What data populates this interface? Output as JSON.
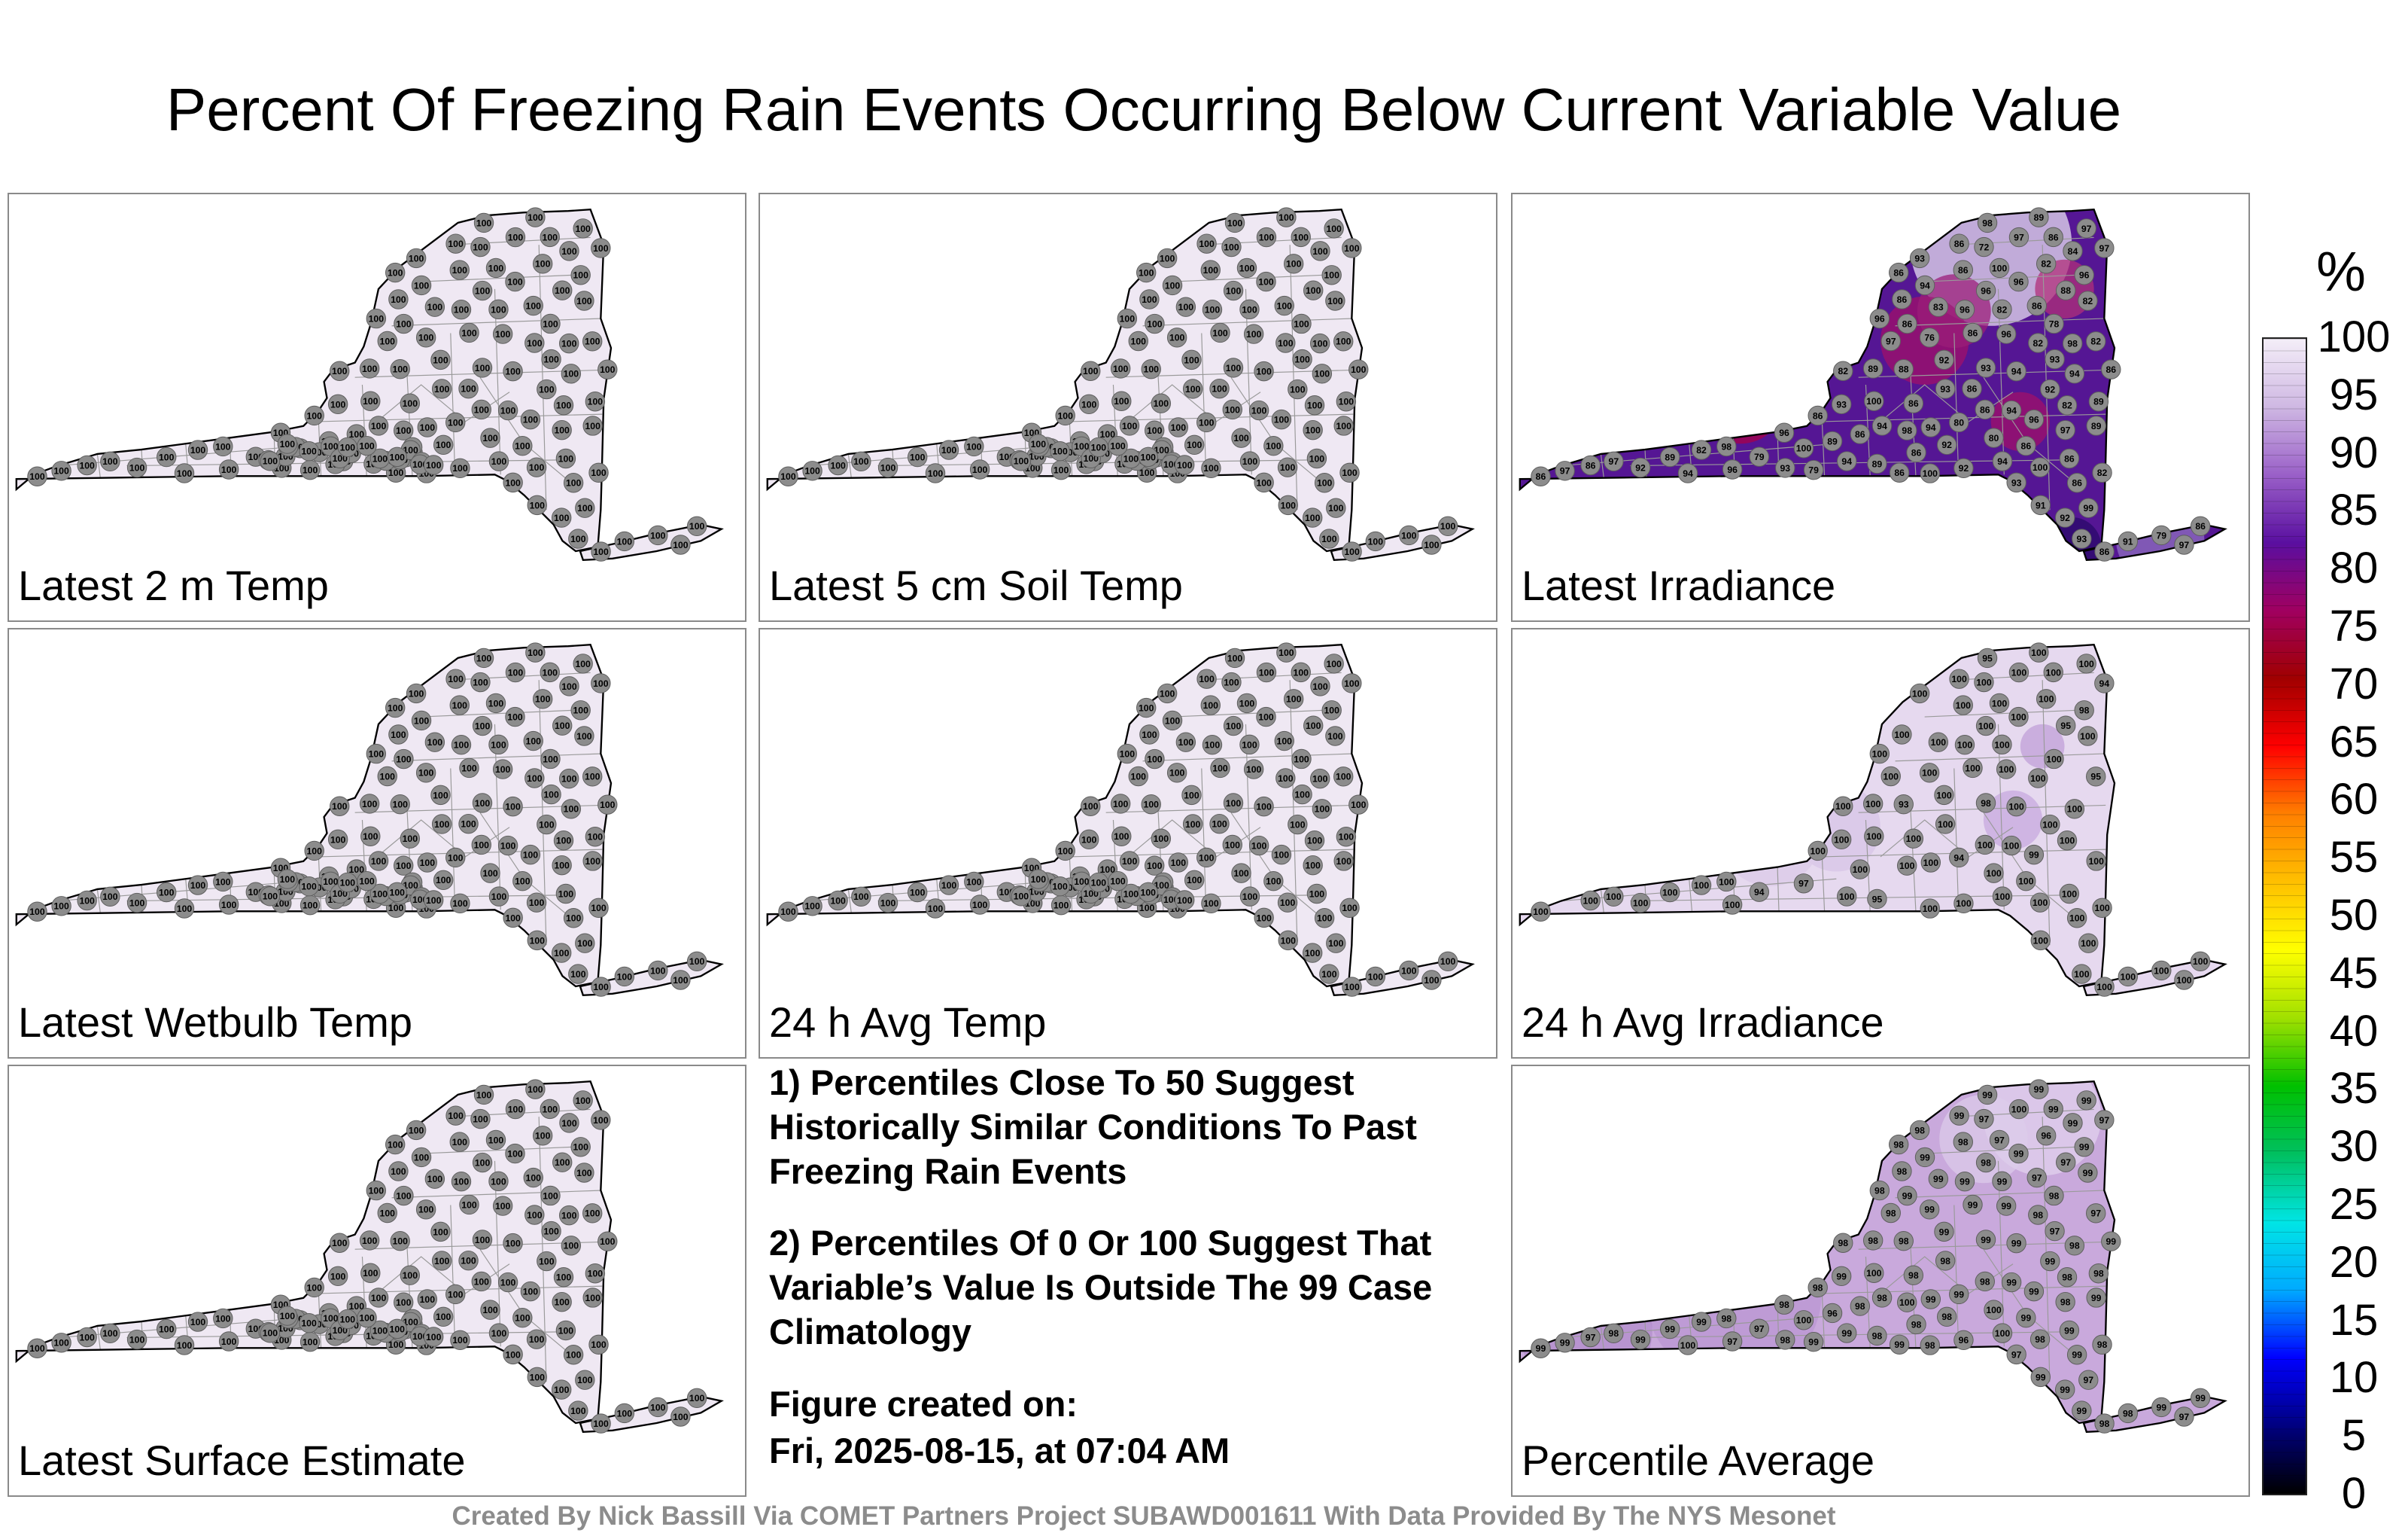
{
  "title": "Percent Of Freezing Rain Events Occurring Below Current Variable Value",
  "panels": [
    {
      "label": "Latest 2 m Temp",
      "values": [
        100,
        100,
        100,
        100,
        100,
        100,
        100,
        100,
        100,
        100,
        100,
        100,
        100,
        100,
        100,
        100,
        100,
        100,
        100,
        100,
        100,
        100,
        100,
        100,
        100,
        100,
        100,
        100,
        100,
        100,
        100,
        100,
        100,
        100,
        100,
        100,
        100,
        100,
        100,
        100,
        100,
        100,
        100,
        100,
        100,
        100,
        100,
        100,
        100,
        100,
        100,
        100,
        100,
        100,
        100,
        100,
        100,
        100,
        100,
        100,
        100,
        100,
        100,
        100,
        100,
        100,
        100,
        100,
        100,
        100,
        100,
        100,
        100,
        100,
        100,
        100,
        100,
        100,
        100,
        100,
        100,
        100,
        100,
        100,
        100,
        100,
        100,
        100,
        100,
        100,
        100,
        100,
        100,
        100,
        100,
        100,
        100,
        100,
        100,
        100,
        100,
        100,
        100,
        100,
        100,
        100,
        100,
        100,
        100,
        100,
        100,
        100,
        100,
        100,
        100,
        100,
        100,
        100,
        100,
        100,
        100,
        100,
        100,
        100,
        100,
        100,
        100
      ]
    },
    {
      "label": "Latest 5 cm Soil Temp",
      "values": [
        100,
        100,
        100,
        100,
        100,
        100,
        100,
        100,
        100,
        100,
        100,
        100,
        100,
        100,
        100,
        100,
        100,
        100,
        100,
        100,
        100,
        100,
        100,
        100,
        100,
        100,
        100,
        100,
        100,
        100,
        100,
        100,
        100,
        100,
        100,
        100,
        100,
        100,
        100,
        100,
        100,
        100,
        100,
        100,
        100,
        100,
        100,
        100,
        100,
        100,
        100,
        100,
        100,
        100,
        100,
        100,
        100,
        100,
        100,
        100,
        100,
        100,
        100,
        100,
        100,
        100,
        100,
        100,
        100,
        100,
        100,
        100,
        100,
        100,
        100,
        100,
        100,
        100,
        100,
        100,
        100,
        100,
        100,
        100,
        100,
        100,
        100,
        100,
        100,
        100,
        100,
        100,
        100,
        100,
        100,
        100,
        100,
        100,
        100,
        100,
        100,
        100,
        100,
        100,
        100,
        100,
        100,
        100,
        100,
        100,
        100,
        100,
        100,
        100,
        100,
        100,
        100,
        100,
        100,
        100,
        100,
        100,
        100,
        100,
        100,
        100,
        100
      ]
    },
    {
      "label": "Latest Irradiance",
      "values": [
        98,
        100,
        94,
        100,
        80,
        86,
        94,
        79,
        100,
        82,
        96,
        96,
        86,
        82,
        97,
        80,
        82,
        86,
        86,
        98,
        96,
        93,
        82,
        76,
        88,
        94,
        100,
        86,
        89,
        91,
        93,
        94,
        97,
        99,
        98,
        86,
        89,
        89,
        82,
        94,
        92,
        96,
        97,
        96,
        93,
        97,
        100,
        72,
        88,
        89,
        92,
        93,
        94,
        86,
        96,
        96,
        97,
        86,
        97,
        78,
        86,
        86,
        82,
        86,
        83,
        89,
        86,
        82,
        93,
        86,
        82,
        92,
        91,
        96,
        86,
        82,
        92,
        79,
        86,
        86,
        89,
        86,
        86,
        92,
        86,
        93,
        86,
        84,
        97,
        93,
        79,
        96,
        92,
        97,
        94,
        86,
        93,
        94,
        89,
        94,
        86,
        98,
        86
      ]
    },
    {
      "label": "Latest Wetbulb Temp",
      "values": [
        100,
        100,
        100,
        100,
        100,
        100,
        100,
        100,
        100,
        100,
        100,
        100,
        100,
        100,
        100,
        100,
        100,
        100,
        100,
        100,
        100,
        100,
        100,
        100,
        100,
        100,
        100,
        100,
        100,
        100,
        100,
        100,
        100,
        100,
        100,
        100,
        100,
        100,
        100,
        100,
        100,
        100,
        100,
        100,
        100,
        100,
        100,
        100,
        100,
        100,
        100,
        100,
        100,
        100,
        100,
        100,
        100,
        100,
        100,
        100,
        100,
        100,
        100,
        100,
        100,
        100,
        100,
        100,
        100,
        100,
        100,
        100,
        100,
        100,
        100,
        100,
        100,
        100,
        100,
        100,
        100,
        100,
        100,
        100,
        100,
        100,
        100,
        100,
        100,
        100,
        100,
        100,
        100,
        100,
        100,
        100,
        100,
        100,
        100,
        100,
        100,
        100,
        100,
        100,
        100,
        100,
        100,
        100,
        100,
        100,
        100,
        100,
        100,
        100,
        100,
        100,
        100,
        100,
        100,
        100,
        100,
        100,
        100,
        100,
        100,
        100,
        100
      ]
    },
    {
      "label": "24 h Avg Temp",
      "values": [
        100,
        100,
        100,
        100,
        100,
        100,
        100,
        100,
        100,
        100,
        100,
        100,
        100,
        100,
        100,
        100,
        100,
        100,
        100,
        100,
        100,
        100,
        100,
        100,
        100,
        100,
        100,
        100,
        100,
        100,
        100,
        100,
        100,
        100,
        100,
        100,
        100,
        100,
        100,
        100,
        100,
        100,
        100,
        100,
        100,
        100,
        100,
        100,
        100,
        100,
        100,
        100,
        100,
        100,
        100,
        100,
        100,
        100,
        100,
        100,
        100,
        100,
        100,
        100,
        100,
        100,
        100,
        100,
        100,
        100,
        100,
        100,
        100,
        100,
        100,
        100,
        100,
        100,
        100,
        100,
        100,
        100,
        100,
        100,
        100,
        100,
        100,
        100,
        100,
        100,
        100,
        100,
        100,
        100,
        100,
        100,
        100,
        100,
        100,
        100,
        100,
        100,
        100,
        100,
        100,
        100,
        100,
        100,
        100,
        100,
        100,
        100,
        100,
        100,
        100,
        100,
        100,
        100,
        100,
        100,
        100,
        100,
        100,
        100,
        100,
        100,
        100
      ]
    },
    {
      "label": "24 h Avg Irradiance",
      "values": [
        100,
        100,
        100,
        100,
        100,
        100,
        100,
        94,
        100,
        100,
        100,
        98,
        100,
        95,
        94,
        94,
        100,
        100,
        100,
        95,
        99,
        98,
        100,
        100,
        95,
        100,
        100,
        100,
        100,
        100,
        100,
        100,
        100,
        100,
        100,
        100,
        100,
        100,
        100,
        100,
        100,
        100,
        100,
        100,
        100,
        100,
        97,
        100,
        93,
        95,
        100,
        100,
        100,
        100,
        100,
        100,
        100,
        100,
        100,
        100,
        100,
        100,
        100,
        100,
        100,
        100,
        100,
        100,
        100,
        100,
        100,
        100,
        100,
        100,
        100,
        100,
        100,
        100,
        100,
        100
      ]
    },
    {
      "label": "Latest Surface Estimate",
      "values": [
        100,
        100,
        100,
        100,
        100,
        100,
        100,
        100,
        100,
        100,
        100,
        100,
        100,
        100,
        100,
        100,
        100,
        100,
        100,
        100,
        100,
        100,
        100,
        100,
        100,
        100,
        100,
        100,
        100,
        100,
        100,
        100,
        100,
        100,
        100,
        100,
        100,
        100,
        100,
        100,
        100,
        100,
        100,
        100,
        100,
        100,
        100,
        100,
        100,
        100,
        100,
        100,
        100,
        100,
        100,
        100,
        100,
        100,
        100,
        100,
        100,
        100,
        100,
        100,
        100,
        100,
        100,
        100,
        100,
        100,
        100,
        100,
        100,
        100,
        100,
        100,
        100,
        100,
        100,
        100,
        100,
        100,
        100,
        100,
        100,
        100,
        100,
        100,
        100,
        100,
        100,
        100,
        100,
        100,
        100,
        100,
        100,
        100,
        100,
        100,
        100,
        100,
        100,
        100,
        100,
        100,
        100,
        100,
        100,
        100,
        100,
        100,
        100,
        100,
        100,
        100,
        100,
        100,
        100,
        100,
        100,
        100,
        100,
        100,
        100,
        100,
        100
      ]
    },
    {
      "label": "Percentile Average",
      "values": [
        100,
        100,
        99,
        97,
        100,
        98,
        99,
        97,
        98,
        96,
        99,
        99,
        98,
        97,
        97,
        99,
        98,
        99,
        97,
        99,
        99,
        99,
        98,
        99,
        97,
        100,
        98,
        98,
        99,
        99,
        98,
        99,
        98,
        97,
        98,
        99,
        99,
        98,
        99,
        98,
        99,
        99,
        99,
        99,
        99,
        100,
        100,
        97,
        98,
        98,
        96,
        98,
        99,
        98,
        97,
        98,
        98,
        99,
        97,
        98,
        99,
        99,
        99,
        98,
        99,
        99,
        99,
        99,
        99,
        99,
        98,
        99,
        98,
        98,
        98,
        98,
        99,
        99,
        98,
        99,
        98,
        97,
        99,
        98,
        99,
        98,
        99,
        99,
        98,
        97,
        99,
        98,
        99,
        99,
        99,
        98,
        97,
        100,
        96,
        98,
        98
      ]
    }
  ],
  "notes": {
    "note1": "1) Percentiles Close To 50 Suggest Historically Similar Conditions To Past Freezing Rain Events",
    "note2": "2) Percentiles Of 0 Or 100 Suggest That Variable’s Value Is Outside The 99 Case Climatology",
    "created_label": "Figure created on:",
    "created_value": "Fri, 2025-08-15, at 07:04 AM"
  },
  "credit": "Created By Nick Bassill Via COMET Partners Project SUBAWD001611 With Data Provided By The NYS Mesonet",
  "colorbar": {
    "unit": "%",
    "ticks": [
      "100",
      "95",
      "90",
      "85",
      "80",
      "75",
      "70",
      "65",
      "60",
      "55",
      "50",
      "45",
      "40",
      "35",
      "30",
      "25",
      "20",
      "15",
      "10",
      "5",
      "0"
    ],
    "stops": [
      "#000000",
      "#000080",
      "#0000ff",
      "#00aaff",
      "#00e5e5",
      "#00c060",
      "#00c000",
      "#a0e000",
      "#ffff00",
      "#ffc000",
      "#ff8000",
      "#ff0000",
      "#a00000",
      "#a00060",
      "#5a0fa0",
      "#9a60c8",
      "#cfb8e3",
      "#f4eef8"
    ]
  },
  "colors": {
    "station": "#8c8c8c",
    "uniform_fill": "#efe8f3",
    "state_border": "#000000",
    "county_lines": "#9a9a9a"
  }
}
